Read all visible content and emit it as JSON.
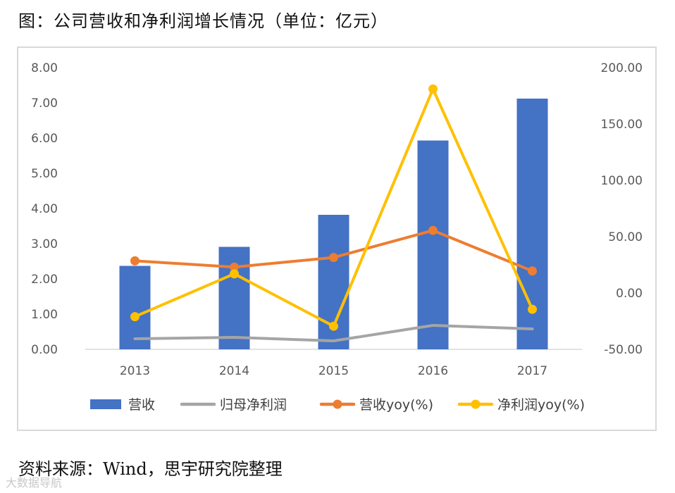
{
  "figure": {
    "title": "图：公司营收和净利润增长情况（单位：亿元）",
    "source": "资料来源：Wind，思宇研究院整理",
    "watermark": "大数据导航"
  },
  "colors": {
    "revenue_bar": "#4472c4",
    "net_profit_line": "#a5a5a5",
    "revenue_yoy_line": "#ed7d31",
    "net_profit_yoy_line": "#ffc000",
    "axis_text": "#595959",
    "axis_line": "#d9d9d9"
  },
  "chart_data": {
    "type": "bar",
    "title": "公司营收和净利润增长情况（单位：亿元）",
    "categories": [
      "2013",
      "2014",
      "2015",
      "2016",
      "2017"
    ],
    "y_left": {
      "ylim": [
        0,
        8
      ],
      "tick_labels": [
        "0.00",
        "1.00",
        "2.00",
        "3.00",
        "4.00",
        "5.00",
        "6.00",
        "7.00",
        "8.00"
      ]
    },
    "y_right": {
      "ylim": [
        -50,
        200
      ],
      "tick_labels": [
        "-50.00",
        "0.00",
        "50.00",
        "100.00",
        "150.00",
        "200.00"
      ]
    },
    "series": [
      {
        "name": "营收",
        "kind": "bar",
        "axis": "left",
        "color": "#4472c4",
        "values": [
          2.37,
          2.91,
          3.82,
          5.93,
          7.12
        ]
      },
      {
        "name": "归母净利润",
        "kind": "line",
        "axis": "left",
        "color": "#a5a5a5",
        "marker": false,
        "values": [
          0.3,
          0.34,
          0.24,
          0.68,
          0.58
        ]
      },
      {
        "name": "营收yoy(%)",
        "kind": "line",
        "axis": "right",
        "color": "#ed7d31",
        "marker": true,
        "values": [
          28.5,
          23.0,
          31.5,
          55.5,
          19.5
        ]
      },
      {
        "name": "净利润yoy(%)",
        "kind": "line",
        "axis": "right",
        "color": "#ffc000",
        "marker": true,
        "values": [
          -21.0,
          17.0,
          -29.5,
          181.0,
          -14.5
        ]
      }
    ],
    "legend_position": "bottom",
    "grid": false
  }
}
